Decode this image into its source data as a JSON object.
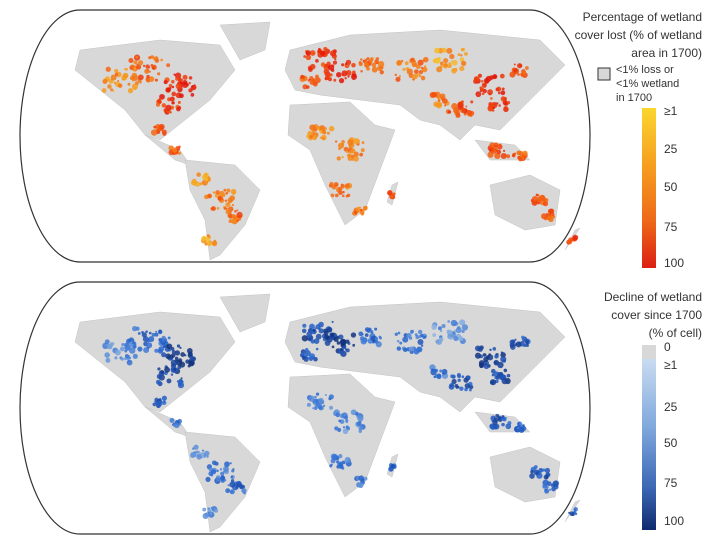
{
  "maps": [
    {
      "legend_title": [
        "Percentage of wetland",
        "cover lost (% of wetland",
        "area in 1700)"
      ],
      "na_label": [
        "<1% loss or",
        "<1% wetland",
        "in 1700"
      ],
      "scale_labels": [
        "≥1",
        "25",
        "50",
        "75",
        "100"
      ]
    },
    {
      "legend_title": [
        "Decline of wetland",
        "cover since 1700",
        "(% of cell)"
      ],
      "scale_labels": [
        "0",
        "≥1",
        "25",
        "50",
        "75",
        "100"
      ]
    }
  ]
}
